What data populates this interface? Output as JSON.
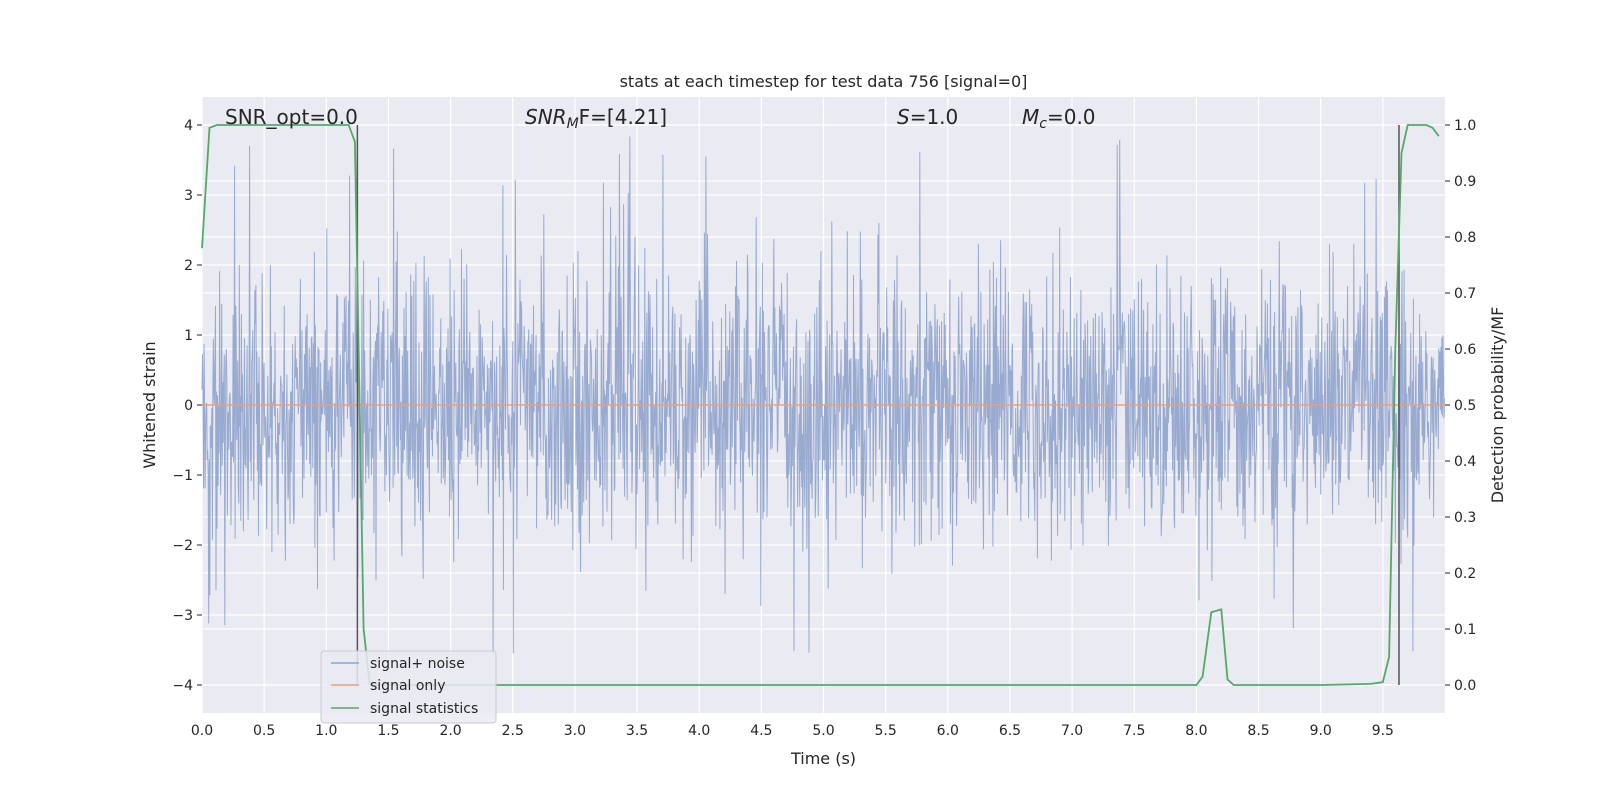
{
  "chart_data": {
    "type": "line",
    "title": "stats at each timestep for test data 756 [signal=0]",
    "xlabel": "Time (s)",
    "ylabel": "Whitened strain",
    "y2label": "Detection probability/MF",
    "xlim": [
      0.0,
      10.0
    ],
    "ylim": [
      -4.4,
      4.4
    ],
    "y2lim": [
      -0.05,
      1.05
    ],
    "xticks": [
      "0.0",
      "0.5",
      "1.0",
      "1.5",
      "2.0",
      "2.5",
      "3.0",
      "3.5",
      "4.0",
      "4.5",
      "5.0",
      "5.5",
      "6.0",
      "6.5",
      "7.0",
      "7.5",
      "8.0",
      "8.5",
      "9.0",
      "9.5"
    ],
    "yticks": [
      "4",
      "3",
      "2",
      "1",
      "0",
      "−1",
      "−2",
      "−3",
      "−4"
    ],
    "y2ticks": [
      "1.0",
      "0.9",
      "0.8",
      "0.7",
      "0.6",
      "0.5",
      "0.4",
      "0.3",
      "0.2",
      "0.1",
      "0.0"
    ],
    "grid": true,
    "legend_position": "lower-left",
    "annotations": {
      "snr_opt": "SNR_opt=0.0",
      "snr_mf_sym": "SNR",
      "snr_mf_sub": "M",
      "snr_mf_rest": "F=[4.21]",
      "s_sym": "S",
      "s_rest": "=1.0",
      "mc_sym": "M",
      "mc_sub": "c",
      "mc_rest": "=0.0"
    },
    "vertical_lines_x": [
      1.25,
      9.63
    ],
    "series": [
      {
        "name": "signal+ noise",
        "color": "#8fa3cc",
        "axis": "left",
        "description_values": "noise band approx -1.6 to 1.7 with spikes up to about 4 and down to about -4"
      },
      {
        "name": "signal only",
        "color": "#e8a07c",
        "axis": "left",
        "x": [
          0.0,
          10.0
        ],
        "y": [
          0.0,
          0.0
        ]
      },
      {
        "name": "signal statistics",
        "color": "#55a868",
        "axis": "right",
        "x": [
          0.0,
          0.06,
          0.12,
          0.5,
          1.0,
          1.18,
          1.23,
          1.26,
          1.3,
          1.35,
          1.4,
          2.0,
          3.0,
          4.0,
          5.0,
          6.0,
          7.0,
          7.9,
          8.0,
          8.05,
          8.12,
          8.2,
          8.25,
          8.3,
          8.5,
          9.0,
          9.4,
          9.5,
          9.55,
          9.6,
          9.65,
          9.7,
          9.75,
          9.8,
          9.85,
          9.9,
          9.95
        ],
        "y": [
          0.78,
          0.995,
          1.0,
          1.0,
          1.0,
          1.0,
          0.97,
          0.6,
          0.1,
          0.0,
          0.0,
          0.0,
          0.0,
          0.0,
          0.0,
          0.0,
          0.0,
          0.0,
          0.0,
          0.015,
          0.13,
          0.135,
          0.01,
          0.0,
          0.0,
          0.0,
          0.002,
          0.005,
          0.05,
          0.6,
          0.95,
          1.0,
          1.0,
          1.0,
          1.0,
          0.995,
          0.98
        ]
      }
    ]
  },
  "legend": {
    "item1": "signal+ noise",
    "item2": "signal only",
    "item3": "signal statistics"
  },
  "colors": {
    "plot_bg": "#eaeaf2",
    "grid": "#ffffff",
    "noise": "#8fa3cc",
    "signal": "#e8a07c",
    "stats": "#55a868",
    "vline": "#555555"
  }
}
